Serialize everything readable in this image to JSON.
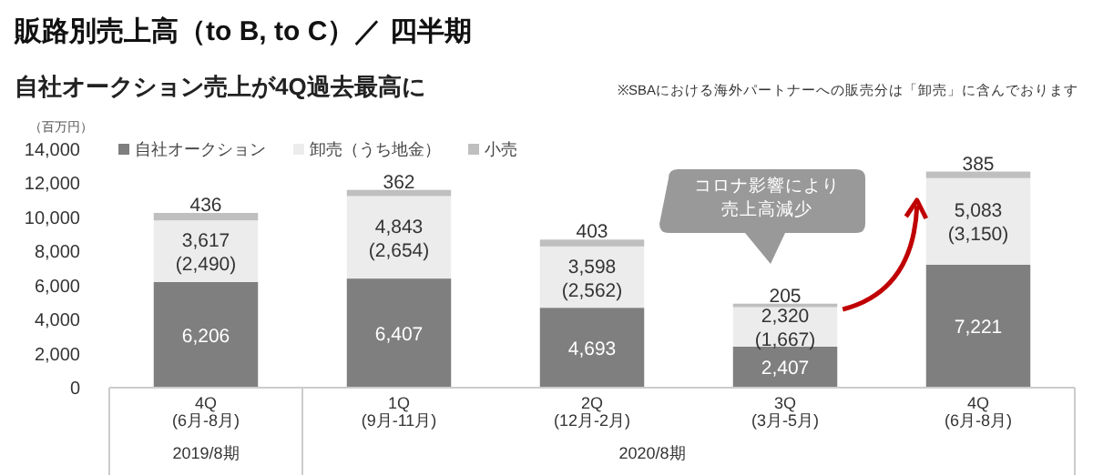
{
  "chart_data": {
    "type": "bar",
    "stacked": true,
    "title": "販路別売上高（to B, to C）／ 四半期",
    "subtitle": "自社オークション売上が4Q過去最高に",
    "ylabel": "（百万円）",
    "categories": [
      "4Q\n(6月-8月)",
      "1Q\n(9月-11月)",
      "2Q\n(12月-2月)",
      "3Q\n(3月-5月)",
      "4Q\n(6月-8月)"
    ],
    "series": [
      {
        "name": "自社オークション",
        "color": "#7f7f7f",
        "values": [
          6206,
          6407,
          4693,
          2407,
          7221
        ],
        "value_labels": [
          "6,206",
          "6,407",
          "4,693",
          "2,407",
          "7,221"
        ]
      },
      {
        "name": "卸売（うち地金）",
        "color": "#ececec",
        "values": [
          3617,
          4843,
          3598,
          2320,
          5083
        ],
        "value_labels": [
          "3,617\n(2,490)",
          "4,843\n(2,654)",
          "3,598\n(2,562)",
          "2,320\n(1,667)",
          "5,083\n(3,150)"
        ]
      },
      {
        "name": "小売",
        "color": "#bfbfbf",
        "values": [
          436,
          362,
          403,
          205,
          385
        ],
        "value_labels": [
          "436",
          "362",
          "403",
          "205",
          "385"
        ]
      }
    ],
    "ylim": [
      0,
      14000
    ],
    "yticks": [
      {
        "value": 0,
        "label": "0"
      },
      {
        "value": 2000,
        "label": "2,000"
      },
      {
        "value": 4000,
        "label": "4,000"
      },
      {
        "value": 6000,
        "label": "6,000"
      },
      {
        "value": 8000,
        "label": "8,000"
      },
      {
        "value": 10000,
        "label": "10,000"
      },
      {
        "value": 12000,
        "label": "12,000"
      },
      {
        "value": 14000,
        "label": "14,000"
      }
    ],
    "grid": false,
    "legend": "top left",
    "annotations": [
      "※SBAにおける海外パートナーへの販売分は「卸売」に含んでおります",
      "コロナ影響により",
      "売上高減少",
      "2019/8期",
      "2020/8期"
    ]
  }
}
